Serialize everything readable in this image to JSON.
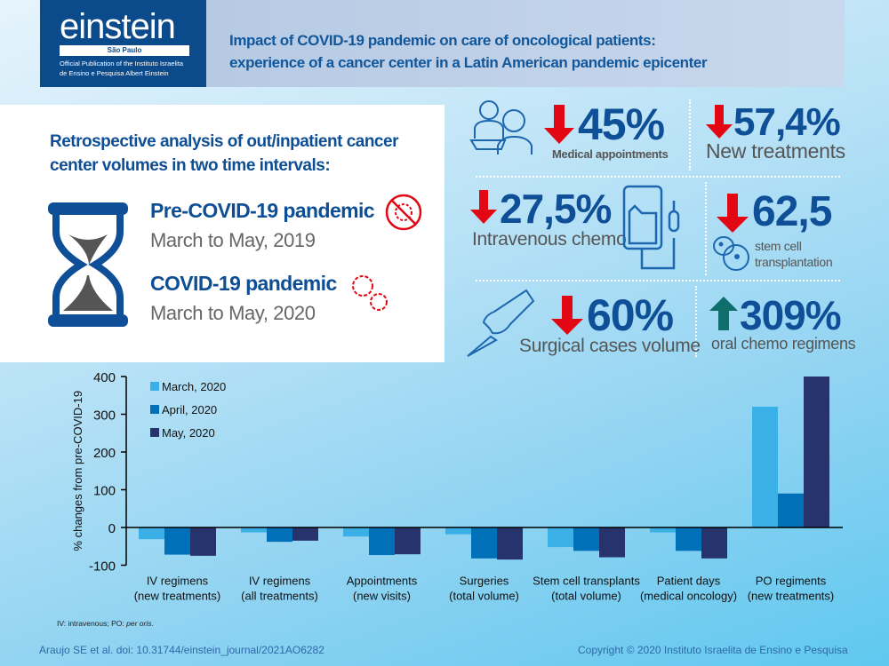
{
  "header": {
    "logo_word": "einstein",
    "logo_city": "São Paulo",
    "logo_pub_line1": "Official Publication of the Instituto Israelita",
    "logo_pub_line2": "de Ensino e Pesquisa Albert Einstein",
    "title_line1": "Impact of COVID-19 pandemic on care of oncological patients:",
    "title_line2": "experience of a cancer center in a Latin American pandemic epicenter"
  },
  "intro": {
    "line1": "Retrospective analysis of out/inpatient cancer",
    "line2": "center volumes in two time intervals:",
    "pre_label": "Pre-COVID-19 pandemic",
    "pre_dates": "March to May, 2019",
    "covid_label": "COVID-19 pandemic",
    "covid_dates": "March to May, 2020"
  },
  "stats": [
    {
      "value": "45%",
      "label": "Medical appointments",
      "direction": "down"
    },
    {
      "value": "57,4%",
      "label": "New treatments",
      "direction": "down"
    },
    {
      "value": "27,5%",
      "label": "Intravenous chemo",
      "direction": "down"
    },
    {
      "value": "62,5",
      "label_line1": "stem cell",
      "label_line2": "transplantation",
      "direction": "down"
    },
    {
      "value": "60%",
      "label": "Surgical cases volume",
      "direction": "down"
    },
    {
      "value": "309%",
      "label": "oral chemo regimens",
      "direction": "up"
    }
  ],
  "colors": {
    "down_arrow": "#e30613",
    "up_arrow": "#0e6e6b",
    "dark_blue": "#0d4e95"
  },
  "chart_data": {
    "type": "bar",
    "ylabel": "% changes from pre-COVID-19",
    "ylim": [
      -100,
      400
    ],
    "yticks": [
      "400",
      "300",
      "200",
      "100",
      "0",
      "-100"
    ],
    "legend": "top-left",
    "categories": [
      [
        "IV regimens",
        "(new treatments)"
      ],
      [
        "IV regimens",
        "(all treatments)"
      ],
      [
        "Appointments",
        "(new visits)"
      ],
      [
        "Surgeries",
        "(total volume)"
      ],
      [
        "Stem cell transplants",
        "(total volume)"
      ],
      [
        "Patient days",
        "(medical oncology)"
      ],
      [
        "PO regiments",
        "(new treatments)"
      ]
    ],
    "series": [
      {
        "name": "March, 2020",
        "color": "#3bb0e6",
        "values": [
          -31,
          -13,
          -24,
          -18,
          -52,
          -13,
          320
        ]
      },
      {
        "name": "April, 2020",
        "color": "#0070b8",
        "values": [
          -72,
          -38,
          -73,
          -82,
          -62,
          -62,
          90
        ]
      },
      {
        "name": "May, 2020",
        "color": "#27336d",
        "values": [
          -75,
          -35,
          -71,
          -85,
          -79,
          -82,
          400
        ]
      }
    ]
  },
  "footer": {
    "abbrev": "IV: intravenous; PO: ",
    "abbrev_italic": "per oris.",
    "citation": "Araujo SE et al.   doi: 10.31744/einstein_journal/2021AO6282",
    "copyright": "Copyright © 2020 Instituto Israelita de Ensino e Pesquisa"
  }
}
